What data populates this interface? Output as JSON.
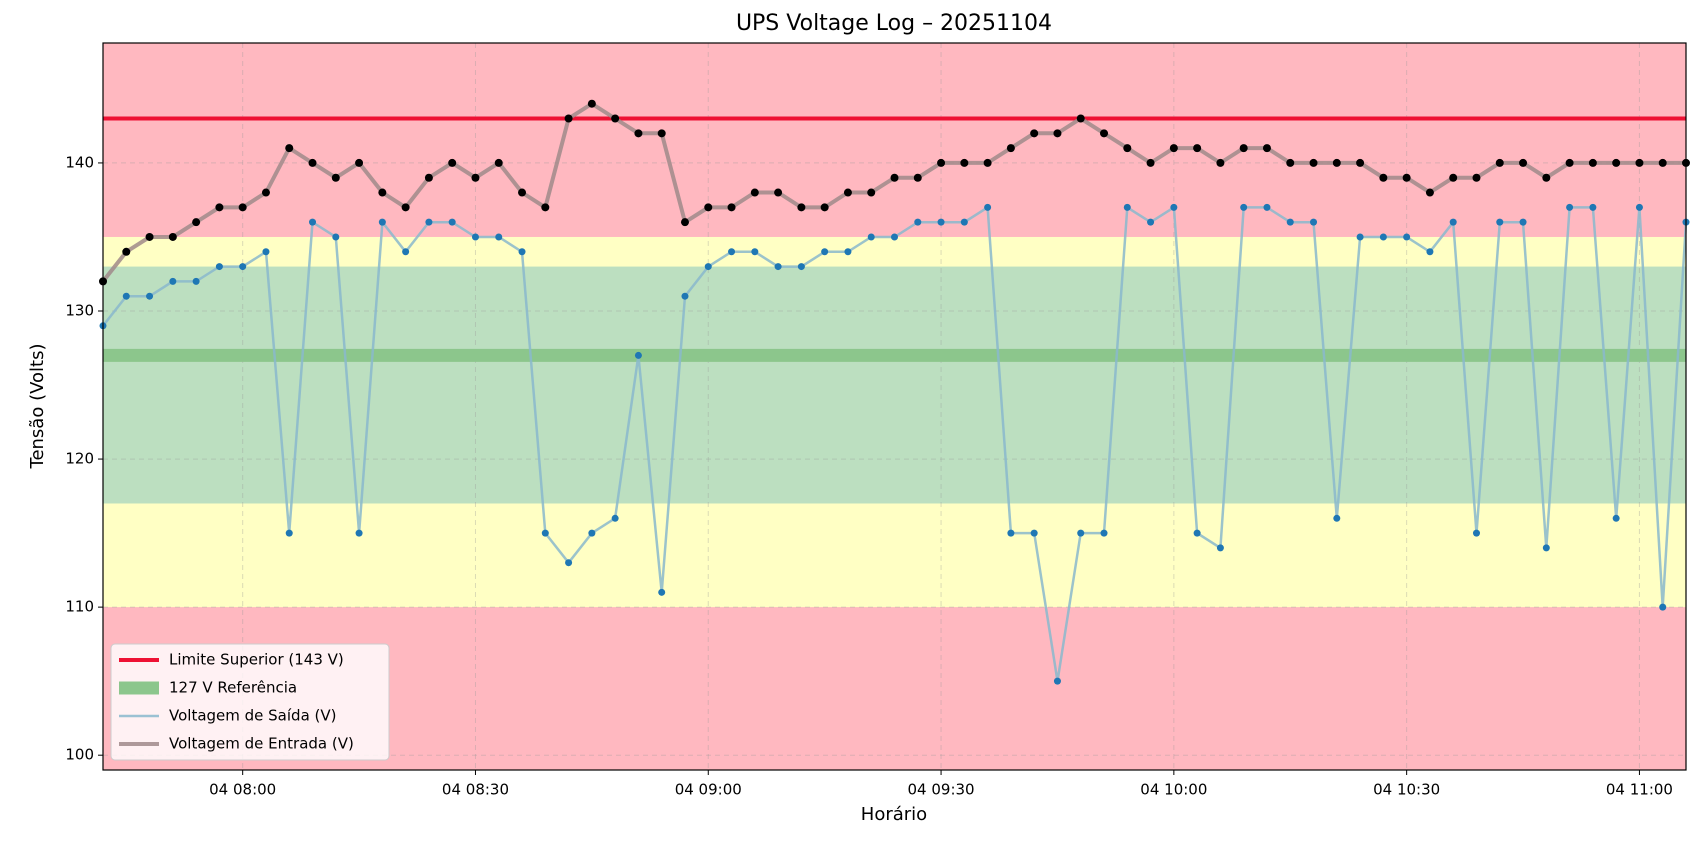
{
  "chart_data": {
    "type": "line",
    "title": "UPS Voltage Log – 20251104",
    "x_label": "Horário",
    "y_label": "Tensão (Volts)",
    "xlim": [
      "04 07:42",
      "04 11:06"
    ],
    "xticks": [
      "04 08:00",
      "04 08:30",
      "04 09:00",
      "04 09:30",
      "04 10:00",
      "04 10:30",
      "04 11:00"
    ],
    "ylim": [
      99,
      148.1
    ],
    "yticks": [
      100,
      110,
      120,
      130,
      140
    ],
    "grid": true,
    "legend": "lower left",
    "bands": [
      {
        "from": 99,
        "to": 148.1,
        "color": "#ffb8c0"
      },
      {
        "from": 110,
        "to": 135,
        "color": "#ffffc4"
      },
      {
        "from": 117,
        "to": 133,
        "color": "#bcdfc0"
      }
    ],
    "reference_lines": [
      {
        "name": "Limite Superior (143 V)",
        "value": 143,
        "color": "#ee1133",
        "kind": "line"
      },
      {
        "name": "127 V Referência",
        "value": 127,
        "color": "#8cc68c",
        "kind": "band"
      }
    ],
    "x": [
      "04 07:42",
      "04 07:45",
      "04 07:48",
      "04 07:51",
      "04 07:54",
      "04 07:57",
      "04 08:00",
      "04 08:03",
      "04 08:06",
      "04 08:09",
      "04 08:12",
      "04 08:15",
      "04 08:18",
      "04 08:21",
      "04 08:24",
      "04 08:27",
      "04 08:30",
      "04 08:33",
      "04 08:36",
      "04 08:39",
      "04 08:42",
      "04 08:45",
      "04 08:48",
      "04 08:51",
      "04 08:54",
      "04 08:57",
      "04 09:00",
      "04 09:03",
      "04 09:06",
      "04 09:09",
      "04 09:12",
      "04 09:15",
      "04 09:18",
      "04 09:21",
      "04 09:24",
      "04 09:27",
      "04 09:30",
      "04 09:33",
      "04 09:36",
      "04 09:39",
      "04 09:42",
      "04 09:45",
      "04 09:48",
      "04 09:51",
      "04 09:54",
      "04 09:57",
      "04 10:00",
      "04 10:03",
      "04 10:06",
      "04 10:09",
      "04 10:12",
      "04 10:15",
      "04 10:18",
      "04 10:21",
      "04 10:24",
      "04 10:27",
      "04 10:30",
      "04 10:33",
      "04 10:36",
      "04 10:39",
      "04 10:42",
      "04 10:45",
      "04 10:48",
      "04 10:51",
      "04 10:54",
      "04 10:57",
      "04 11:00",
      "04 11:03",
      "04 11:06"
    ],
    "series": [
      {
        "name": "Voltagem de Saída (V)",
        "color": "#1f77b4",
        "line_color": "#8ab8cc",
        "values": [
          129,
          131,
          131,
          132,
          132,
          133,
          133,
          134,
          115,
          136,
          135,
          115,
          136,
          134,
          136,
          136,
          135,
          135,
          134,
          115,
          113,
          115,
          116,
          127,
          111,
          131,
          133,
          134,
          134,
          133,
          133,
          134,
          134,
          135,
          135,
          136,
          136,
          136,
          137,
          115,
          115,
          105,
          115,
          115,
          137,
          136,
          137,
          115,
          114,
          137,
          137,
          136,
          136,
          116,
          135,
          135,
          135,
          134,
          136,
          115,
          136,
          136,
          114,
          137,
          137,
          116,
          137,
          110,
          136
        ]
      },
      {
        "name": "Voltagem de Entrada (V)",
        "color": "#000000",
        "line_color": "#a08a8a",
        "values": [
          132,
          134,
          135,
          135,
          136,
          137,
          137,
          138,
          141,
          140,
          139,
          140,
          138,
          137,
          139,
          140,
          139,
          140,
          138,
          137,
          143,
          144,
          143,
          142,
          142,
          136,
          137,
          137,
          138,
          138,
          137,
          137,
          138,
          138,
          139,
          139,
          140,
          140,
          140,
          141,
          142,
          142,
          143,
          142,
          141,
          140,
          141,
          141,
          140,
          141,
          141,
          140,
          140,
          140,
          140,
          139,
          139,
          138,
          139,
          139,
          140,
          140,
          139,
          140,
          140,
          140,
          140,
          140,
          140
        ]
      }
    ]
  }
}
